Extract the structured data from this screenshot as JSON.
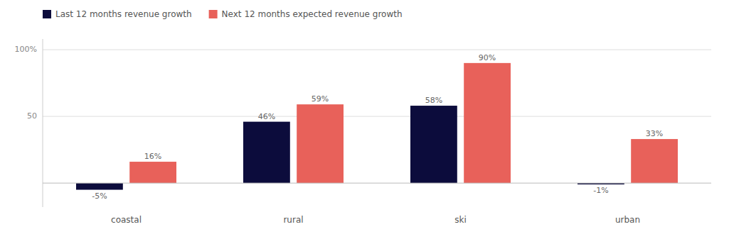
{
  "chart_data": {
    "type": "bar",
    "categories": [
      "coastal",
      "rural",
      "ski",
      "urban"
    ],
    "series": [
      {
        "name": "Last 12 months revenue growth",
        "color": "#0c0c3c",
        "values": [
          -5,
          46,
          58,
          -1
        ],
        "value_labels": [
          "-5%",
          "46%",
          "58%",
          "-1%"
        ]
      },
      {
        "name": "Next 12 months expected revenue growth",
        "color": "#e8615a",
        "values": [
          16,
          59,
          90,
          33
        ],
        "value_labels": [
          "16%",
          "59%",
          "90%",
          "33%"
        ]
      }
    ],
    "ylim": [
      -18,
      108
    ],
    "yticks": [
      50,
      {
        "value": 100,
        "label": "100%"
      }
    ],
    "grid": true,
    "legend": "top left",
    "data_labels": true
  }
}
